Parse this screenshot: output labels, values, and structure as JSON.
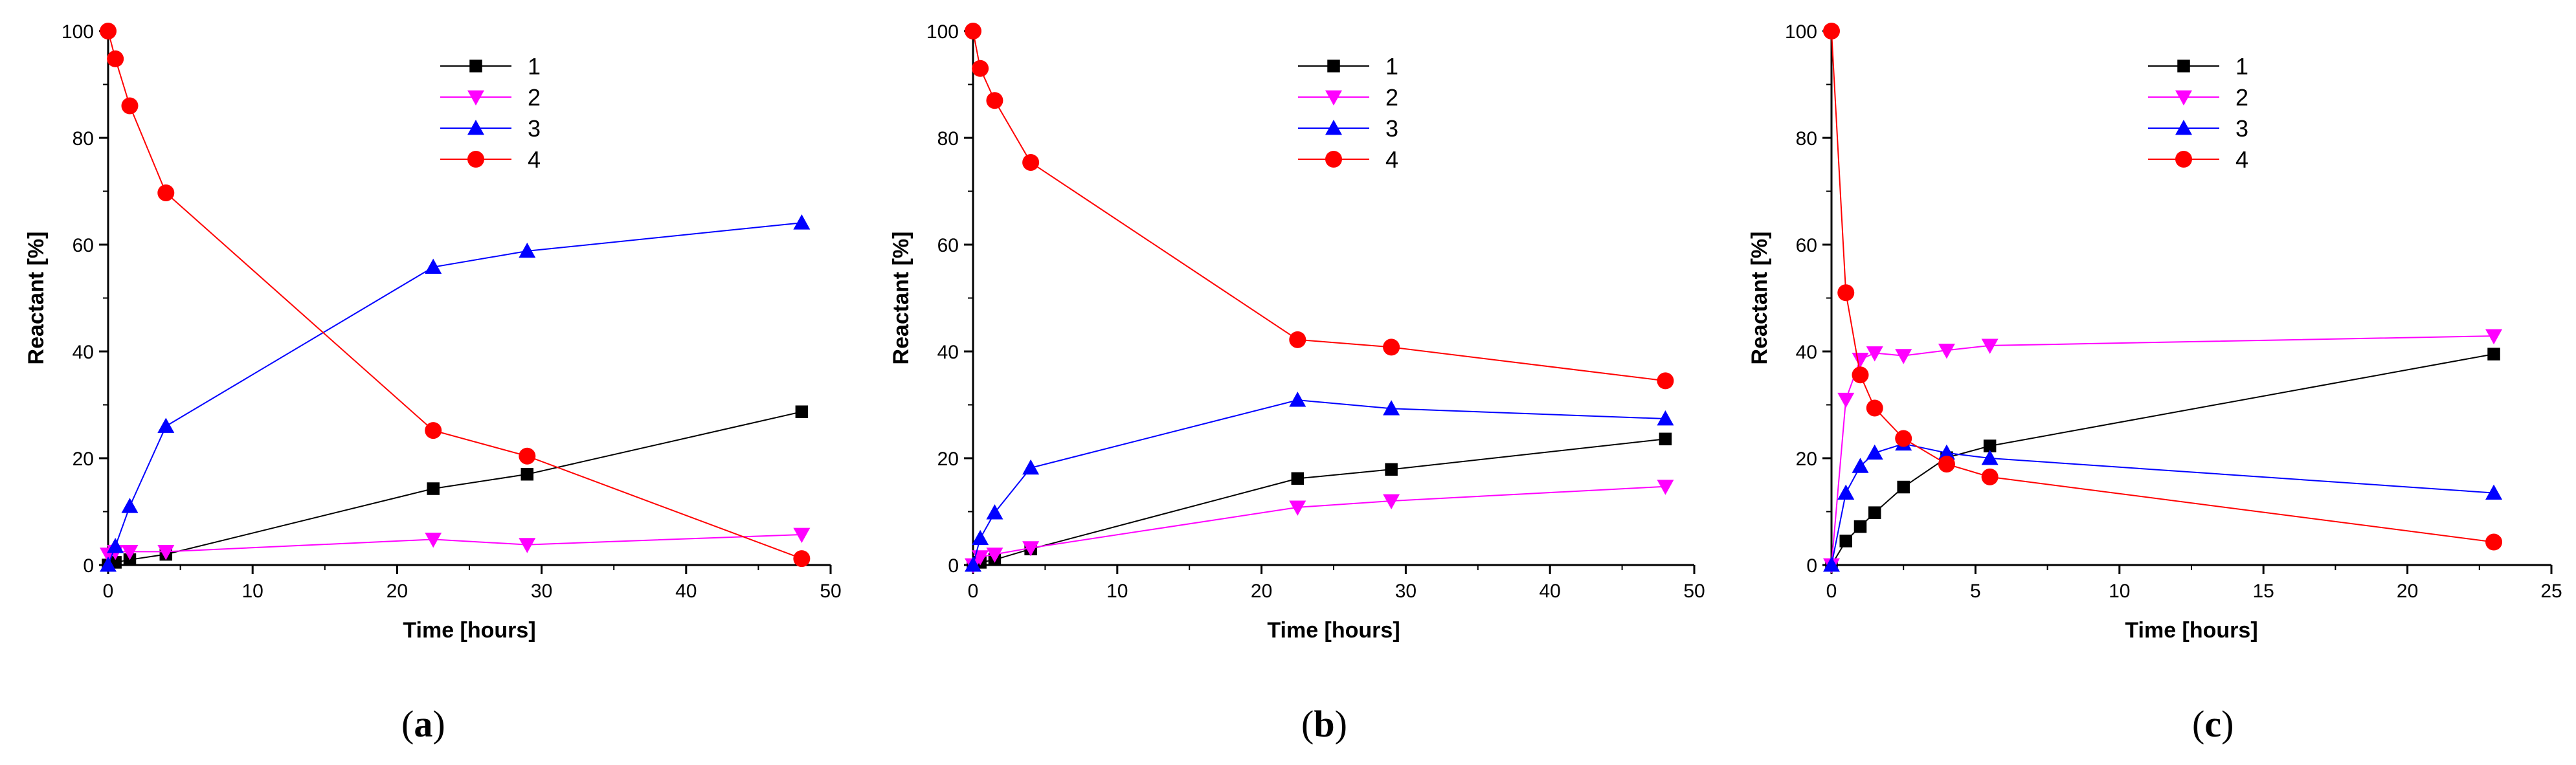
{
  "chart_data": [
    {
      "type": "line",
      "panel_label": "a",
      "xlabel": "Time [hours]",
      "ylabel": "Reactant [%]",
      "xlim": [
        0,
        50
      ],
      "ylim": [
        0,
        100
      ],
      "xticks": [
        0,
        10,
        20,
        30,
        40,
        50
      ],
      "yticks": [
        0,
        20,
        40,
        60,
        80,
        100
      ],
      "x_tick_labels": [
        "0",
        "10",
        "20",
        "30",
        "40",
        "50"
      ],
      "y_tick_labels": [
        "0",
        "20",
        "40",
        "60",
        "80",
        "100"
      ],
      "legend_position": "top-center",
      "series": [
        {
          "name": "1",
          "color": "#000000",
          "marker": "square",
          "x": [
            0,
            0.5,
            1.5,
            4,
            22.5,
            29,
            48
          ],
          "y": [
            0,
            0.5,
            1,
            2,
            14.3,
            17,
            28.7
          ]
        },
        {
          "name": "2",
          "color": "#ff00ff",
          "marker": "triangle-down",
          "x": [
            0,
            0.5,
            1.5,
            4,
            22.5,
            29,
            48
          ],
          "y": [
            2,
            2.5,
            2.5,
            2.5,
            4.8,
            3.8,
            5.7
          ]
        },
        {
          "name": "3",
          "color": "#0000ff",
          "marker": "triangle-up",
          "x": [
            0,
            0.5,
            1.5,
            4,
            22.5,
            29,
            48
          ],
          "y": [
            0,
            3.5,
            11,
            26,
            55.8,
            58.8,
            64.1
          ]
        },
        {
          "name": "4",
          "color": "#ff0000",
          "marker": "circle",
          "x": [
            0,
            0.5,
            1.5,
            4,
            22.5,
            29,
            48
          ],
          "y": [
            100,
            94.8,
            86,
            69.7,
            25.2,
            20.4,
            1.2
          ]
        }
      ]
    },
    {
      "type": "line",
      "panel_label": "b",
      "xlabel": "Time [hours]",
      "ylabel": "Reactant [%]",
      "xlim": [
        0,
        50
      ],
      "ylim": [
        0,
        100
      ],
      "xticks": [
        0,
        10,
        20,
        30,
        40,
        50
      ],
      "yticks": [
        0,
        20,
        40,
        60,
        80,
        100
      ],
      "x_tick_labels": [
        "0",
        "10",
        "20",
        "30",
        "40",
        "50"
      ],
      "y_tick_labels": [
        "0",
        "20",
        "40",
        "60",
        "80",
        "100"
      ],
      "legend_position": "top-center",
      "series": [
        {
          "name": "1",
          "color": "#000000",
          "marker": "square",
          "x": [
            0,
            0.5,
            1.5,
            4,
            22.5,
            29,
            48
          ],
          "y": [
            0,
            0.5,
            1,
            3,
            16.2,
            17.9,
            23.6
          ]
        },
        {
          "name": "2",
          "color": "#ff00ff",
          "marker": "triangle-down",
          "x": [
            0,
            0.5,
            1.5,
            4,
            22.5,
            29,
            48
          ],
          "y": [
            0,
            1.5,
            2,
            3.2,
            10.8,
            12,
            14.7
          ]
        },
        {
          "name": "3",
          "color": "#0000ff",
          "marker": "triangle-up",
          "x": [
            0,
            0.5,
            1.5,
            4,
            22.5,
            29,
            48
          ],
          "y": [
            0,
            5,
            9.8,
            18.2,
            30.9,
            29.3,
            27.4
          ]
        },
        {
          "name": "4",
          "color": "#ff0000",
          "marker": "circle",
          "x": [
            0,
            0.5,
            1.5,
            4,
            22.5,
            29,
            48
          ],
          "y": [
            100,
            93,
            87,
            75.4,
            42.2,
            40.8,
            34.5
          ]
        }
      ]
    },
    {
      "type": "line",
      "panel_label": "c",
      "xlabel": "Time [hours]",
      "ylabel": "Reactant [%]",
      "xlim": [
        0,
        25
      ],
      "ylim": [
        0,
        100
      ],
      "xticks": [
        0,
        5,
        10,
        15,
        20,
        25
      ],
      "yticks": [
        0,
        20,
        40,
        60,
        80,
        100
      ],
      "x_tick_labels": [
        "0",
        "5",
        "10",
        "15",
        "20",
        "25"
      ],
      "y_tick_labels": [
        "0",
        "20",
        "40",
        "60",
        "80",
        "100"
      ],
      "legend_position": "top-center",
      "series": [
        {
          "name": "1",
          "color": "#000000",
          "marker": "square",
          "x": [
            0,
            0.5,
            1,
            1.5,
            2.5,
            4,
            5.5,
            23
          ],
          "y": [
            0,
            4.5,
            7.2,
            9.8,
            14.6,
            20.1,
            22.3,
            39.5
          ]
        },
        {
          "name": "2",
          "color": "#ff00ff",
          "marker": "triangle-down",
          "x": [
            0,
            0.5,
            1,
            1.5,
            2.5,
            4,
            5.5,
            23
          ],
          "y": [
            0,
            31,
            38.5,
            39.7,
            39.2,
            40.2,
            41.1,
            42.9
          ]
        },
        {
          "name": "3",
          "color": "#0000ff",
          "marker": "triangle-up",
          "x": [
            0,
            0.5,
            1,
            1.5,
            2.5,
            4,
            5.5,
            23
          ],
          "y": [
            0,
            13.5,
            18.5,
            21,
            22.7,
            21,
            20,
            13.5
          ]
        },
        {
          "name": "4",
          "color": "#ff0000",
          "marker": "circle",
          "x": [
            0,
            0.5,
            1,
            1.5,
            2.5,
            4,
            5.5,
            23
          ],
          "y": [
            100,
            51,
            35.6,
            29.4,
            23.7,
            18.9,
            16.5,
            4.3
          ]
        }
      ]
    }
  ]
}
